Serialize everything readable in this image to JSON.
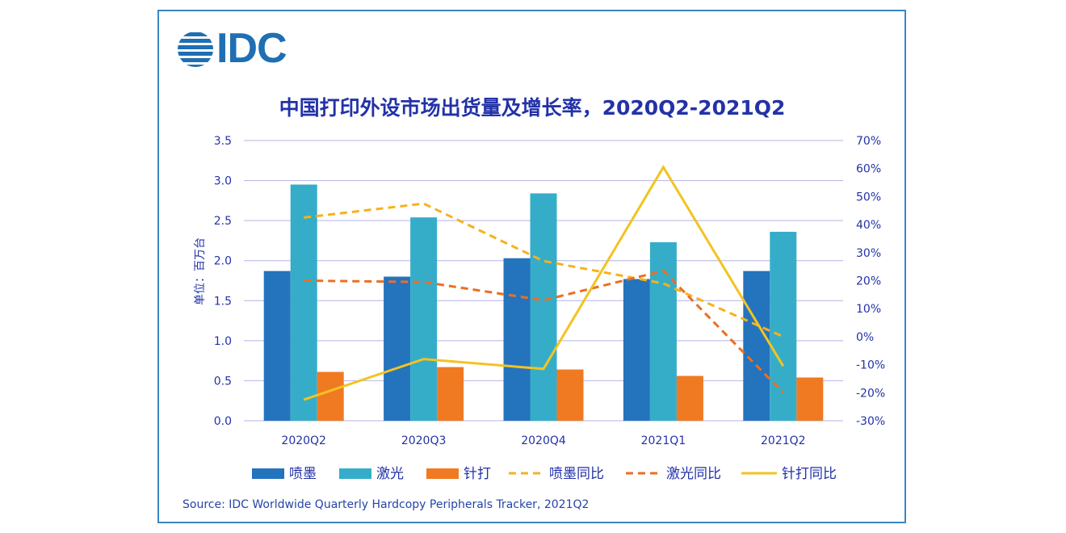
{
  "logo": {
    "text": "IDC",
    "icon": "idc-globe-icon"
  },
  "source": "Source:  IDC Worldwide Quarterly Hardcopy Peripherals Tracker, 2021Q2",
  "colors": {
    "inkjet": "#2473bd",
    "laser": "#35adc9",
    "dotmatrix": "#f07a22",
    "inkjet_yoy": "#f5b21e",
    "laser_yoy": "#eb6f23",
    "dotmatrix_yoy": "#f3c321",
    "grid": "#b4b4e6",
    "text_blue": "#2332a8"
  },
  "chart_data": {
    "type": "bar",
    "title": "中国打印外设市场出货量及增长率，2020Q2-2021Q2",
    "categories": [
      "2020Q2",
      "2020Q3",
      "2020Q4",
      "2021Q1",
      "2021Q2"
    ],
    "ylabel": "单位：百万台",
    "ylim": [
      0,
      3.5
    ],
    "yticks": [
      "0.0",
      "0.5",
      "1.0",
      "1.5",
      "2.0",
      "2.5",
      "3.0",
      "3.5"
    ],
    "y2lim": [
      -30,
      70
    ],
    "y2ticks": [
      "-30%",
      "-20%",
      "-10%",
      "0%",
      "10%",
      "20%",
      "30%",
      "40%",
      "50%",
      "60%",
      "70%"
    ],
    "grid": true,
    "legend_position": "bottom",
    "series": [
      {
        "name": "喷墨",
        "type": "bar",
        "axis": "left",
        "values": [
          1.87,
          1.8,
          2.03,
          1.77,
          1.87
        ]
      },
      {
        "name": "激光",
        "type": "bar",
        "axis": "left",
        "values": [
          2.95,
          2.54,
          2.84,
          2.23,
          2.36
        ]
      },
      {
        "name": "针打",
        "type": "bar",
        "axis": "left",
        "values": [
          0.61,
          0.67,
          0.64,
          0.56,
          0.54
        ]
      },
      {
        "name": "喷墨同比",
        "type": "line",
        "style": "dashed",
        "axis": "right",
        "values": [
          42.5,
          47.5,
          27,
          19,
          0
        ]
      },
      {
        "name": "激光同比",
        "type": "line",
        "style": "dashed",
        "axis": "right",
        "values": [
          20,
          19.5,
          13,
          23.5,
          -20
        ]
      },
      {
        "name": "针打同比",
        "type": "line",
        "style": "solid",
        "axis": "right",
        "values": [
          -22.5,
          -8,
          -11.5,
          60.5,
          -10.5
        ]
      }
    ]
  }
}
